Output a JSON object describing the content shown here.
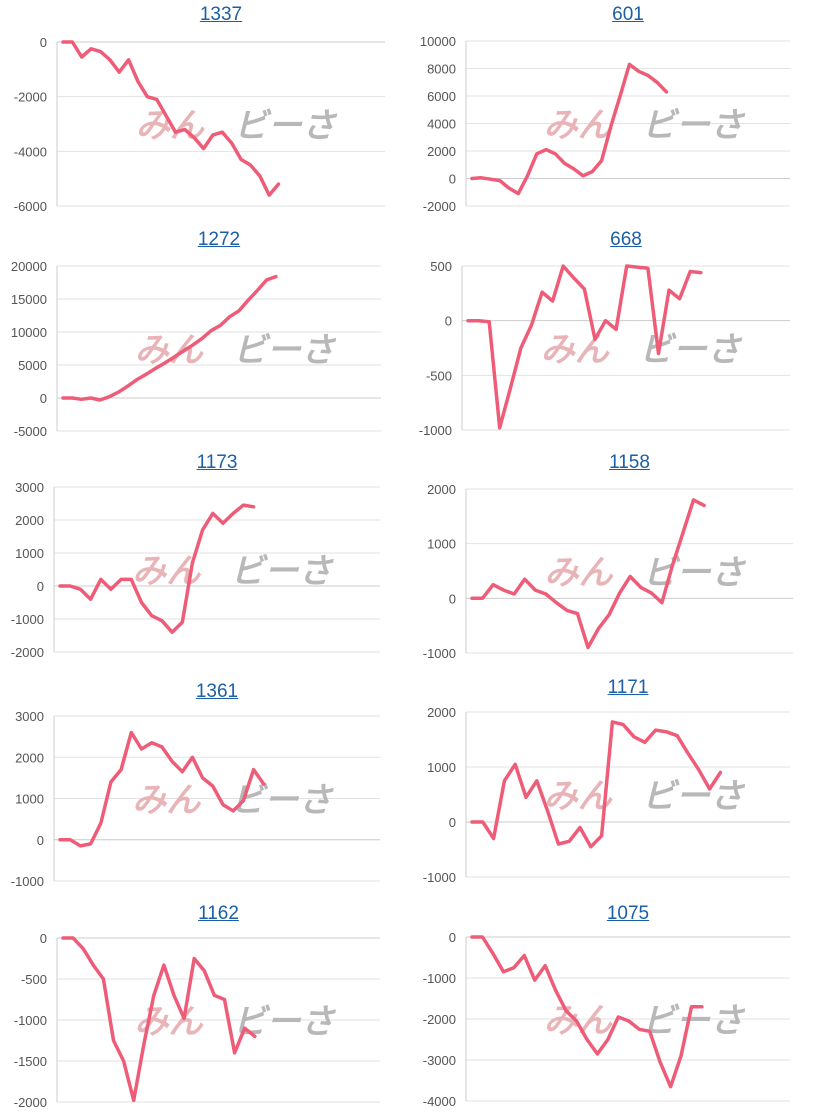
{
  "watermark": {
    "part1": "みん",
    "part2": "ビーさ"
  },
  "colors": {
    "line": "#ee5c78",
    "grid": "#e2e2e2",
    "axis": "#cccccc",
    "title": "#1a5fa8"
  },
  "chart_data": [
    {
      "type": "line",
      "title": "1337",
      "yticks": [
        0,
        -2000,
        -4000,
        -6000
      ],
      "ylim": [
        -6000,
        0
      ],
      "values": [
        0,
        0,
        -550,
        -250,
        -350,
        -650,
        -1100,
        -650,
        -1450,
        -2000,
        -2100,
        -2700,
        -3300,
        -3200,
        -3500,
        -3900,
        -3400,
        -3300,
        -3700,
        -4300,
        -4500,
        -4900,
        -5600,
        -5200
      ]
    },
    {
      "type": "line",
      "title": "601",
      "yticks": [
        10000,
        8000,
        6000,
        4000,
        2000,
        0,
        -2000
      ],
      "ylim": [
        -2000,
        10000
      ],
      "values": [
        0,
        50,
        -50,
        -150,
        -700,
        -1100,
        200,
        1800,
        2100,
        1800,
        1100,
        700,
        200,
        500,
        1300,
        3800,
        6000,
        8300,
        7800,
        7500,
        7000,
        6300
      ]
    },
    {
      "type": "line",
      "title": "1272",
      "yticks": [
        20000,
        15000,
        10000,
        5000,
        0,
        -5000
      ],
      "ylim": [
        -5000,
        20000
      ],
      "values": [
        0,
        0,
        -200,
        0,
        -300,
        200,
        900,
        1800,
        2800,
        3600,
        4500,
        5300,
        6200,
        7100,
        8000,
        9000,
        10200,
        11000,
        12300,
        13200,
        14800,
        16300,
        17900,
        18400
      ]
    },
    {
      "type": "line",
      "title": "668",
      "yticks": [
        500,
        0,
        -500,
        -1000
      ],
      "ylim": [
        -1000,
        500
      ],
      "values": [
        0,
        0,
        -10,
        -980,
        -620,
        -250,
        -40,
        260,
        180,
        500,
        390,
        290,
        -170,
        0,
        -80,
        500,
        490,
        480,
        -300,
        280,
        200,
        450,
        440
      ]
    },
    {
      "type": "line",
      "title": "1173",
      "yticks": [
        3000,
        2000,
        1000,
        0,
        -1000,
        -2000
      ],
      "ylim": [
        -2000,
        3000
      ],
      "values": [
        0,
        0,
        -100,
        -400,
        200,
        -100,
        200,
        200,
        -500,
        -900,
        -1050,
        -1400,
        -1100,
        700,
        1700,
        2200,
        1900,
        2200,
        2450,
        2400
      ]
    },
    {
      "type": "line",
      "title": "1158",
      "yticks": [
        2000,
        1000,
        0,
        -1000
      ],
      "ylim": [
        -1000,
        2000
      ],
      "values": [
        0,
        0,
        250,
        150,
        80,
        350,
        150,
        80,
        -80,
        -220,
        -280,
        -900,
        -550,
        -300,
        100,
        400,
        200,
        100,
        -80,
        600,
        1200,
        1800,
        1700
      ]
    },
    {
      "type": "line",
      "title": "1361",
      "yticks": [
        3000,
        2000,
        1000,
        0,
        -1000
      ],
      "ylim": [
        -1000,
        3000
      ],
      "values": [
        0,
        0,
        -150,
        -100,
        400,
        1400,
        1700,
        2600,
        2200,
        2350,
        2250,
        1900,
        1650,
        2000,
        1500,
        1300,
        850,
        700,
        950,
        1700,
        1350
      ]
    },
    {
      "type": "line",
      "title": "1171",
      "yticks": [
        2000,
        1000,
        0,
        -1000
      ],
      "ylim": [
        -1000,
        2000
      ],
      "values": [
        0,
        0,
        -300,
        750,
        1050,
        450,
        750,
        200,
        -400,
        -350,
        -100,
        -450,
        -250,
        1820,
        1770,
        1550,
        1450,
        1670,
        1640,
        1570,
        1250,
        950,
        600,
        900
      ]
    },
    {
      "type": "line",
      "title": "1162",
      "yticks": [
        0,
        -500,
        -1000,
        -1500,
        -2000
      ],
      "ylim": [
        -2000,
        0
      ],
      "values": [
        0,
        0,
        -130,
        -330,
        -500,
        -1250,
        -1500,
        -1980,
        -1300,
        -700,
        -330,
        -700,
        -980,
        -250,
        -400,
        -700,
        -750,
        -1400,
        -1100,
        -1200
      ]
    },
    {
      "type": "line",
      "title": "1075",
      "yticks": [
        0,
        -1000,
        -2000,
        -3000,
        -4000
      ],
      "ylim": [
        -4000,
        0
      ],
      "values": [
        0,
        0,
        -400,
        -850,
        -750,
        -450,
        -1050,
        -700,
        -1300,
        -1800,
        -2050,
        -2500,
        -2850,
        -2500,
        -1950,
        -2050,
        -2250,
        -2300,
        -3050,
        -3650,
        -2900,
        -1700,
        -1700
      ]
    }
  ]
}
